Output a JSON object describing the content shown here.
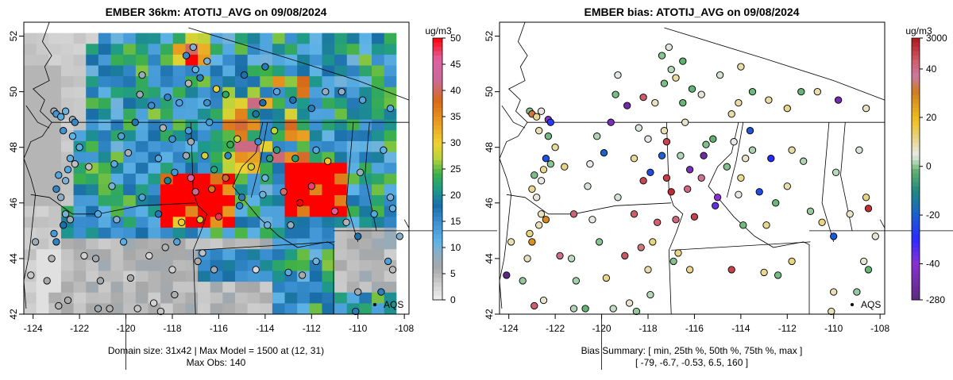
{
  "charts": {
    "left": {
      "title": "EMBER 36km: ATOTIJ_AVG on 09/08/2024",
      "unit": "ug/m3",
      "x_ticks": [
        "-124",
        "-122",
        "-120",
        "-118",
        "-116",
        "-114",
        "-112",
        "-110",
        "-108"
      ],
      "y_ticks": [
        "42",
        "44",
        "46",
        "48",
        "50",
        "52"
      ],
      "colorbar_ticks": [
        "0",
        "5",
        "10",
        "15",
        "20",
        "25",
        "30",
        "35",
        "40",
        "45",
        "50"
      ],
      "legend_label": "AQS",
      "caption_line1": "Domain size: 31x42 | Max Model = 1500 at (12, 31)",
      "caption_line2": "Max Obs: 140"
    },
    "right": {
      "title": "EMBER bias: ATOTIJ_AVG on 09/08/2024",
      "unit": "ug/m3",
      "x_ticks": [
        "-124",
        "-122",
        "-120",
        "-118",
        "-116",
        "-114",
        "-112",
        "-110",
        "-108"
      ],
      "y_ticks": [
        "42",
        "44",
        "46",
        "48",
        "50",
        "52"
      ],
      "colorbar_ticks": [
        "3000",
        "40",
        "20",
        "0",
        "-20",
        "-40",
        "-280"
      ],
      "legend_label": "AQS",
      "caption_line1": "Bias Summary: [ min, 25th %, 50th %, 75th %, max ]",
      "caption_line2": "[ -79,   -6.7,   -0.53,   6.5,   160 ]"
    }
  },
  "chart_data": [
    {
      "type": "heatmap",
      "title": "EMBER 36km: ATOTIJ_AVG on 09/08/2024",
      "xlabel": "",
      "ylabel": "",
      "xlim": [
        -124.4,
        -107.8
      ],
      "ylim": [
        42,
        52.5
      ],
      "colorbar": {
        "unit": "ug/m3",
        "range": [
          0,
          50
        ]
      },
      "observations": {
        "legend": "AQS",
        "max": 140
      },
      "domain_size": "31x42",
      "max_model": 1500
    },
    {
      "type": "scatter",
      "title": "EMBER bias: ATOTIJ_AVG on 09/08/2024",
      "xlabel": "",
      "ylabel": "",
      "xlim": [
        -124.4,
        -107.8
      ],
      "ylim": [
        42,
        52.5
      ],
      "colorbar": {
        "unit": "ug/m3",
        "range": [
          -280,
          3000
        ]
      },
      "bias_summary": {
        "min": -79,
        "p25": -6.7,
        "p50": -0.53,
        "p75": 6.5,
        "max": 160
      }
    }
  ]
}
